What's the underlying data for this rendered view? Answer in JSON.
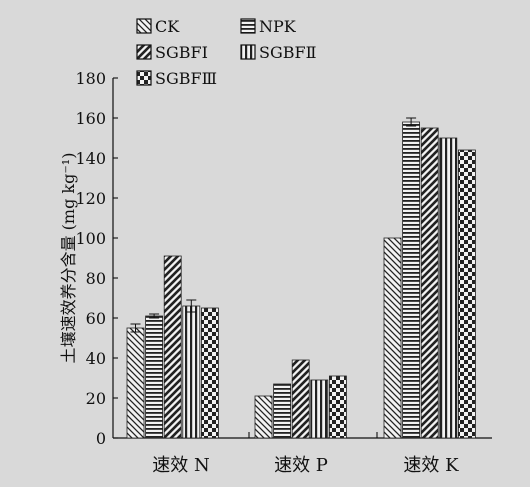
{
  "chart_data": {
    "type": "bar",
    "ylabel": "土壤速效养分含量 (mg kg⁻¹)",
    "ylim": [
      0,
      180
    ],
    "yticks": [
      0,
      20,
      40,
      60,
      80,
      100,
      120,
      140,
      160,
      180
    ],
    "categories": [
      "速效 N",
      "速效 P",
      "速效 K"
    ],
    "legend_position": "top",
    "series": [
      {
        "name": "CK",
        "pattern": "diag-back",
        "values": [
          55,
          21,
          100
        ],
        "errors": [
          2,
          0,
          0
        ]
      },
      {
        "name": "NPK",
        "pattern": "horizontal",
        "values": [
          61,
          27,
          158
        ],
        "errors": [
          1,
          0,
          2
        ]
      },
      {
        "name": "SGBFⅠ",
        "pattern": "diag-fwd",
        "values": [
          91,
          39,
          155
        ],
        "errors": [
          0,
          0,
          0
        ]
      },
      {
        "name": "SGBFⅡ",
        "pattern": "vertical",
        "values": [
          66,
          29,
          150
        ],
        "errors": [
          3,
          0,
          0
        ]
      },
      {
        "name": "SGBFⅢ",
        "pattern": "checker",
        "values": [
          65,
          31,
          144
        ],
        "errors": [
          0,
          0,
          0
        ]
      }
    ]
  }
}
